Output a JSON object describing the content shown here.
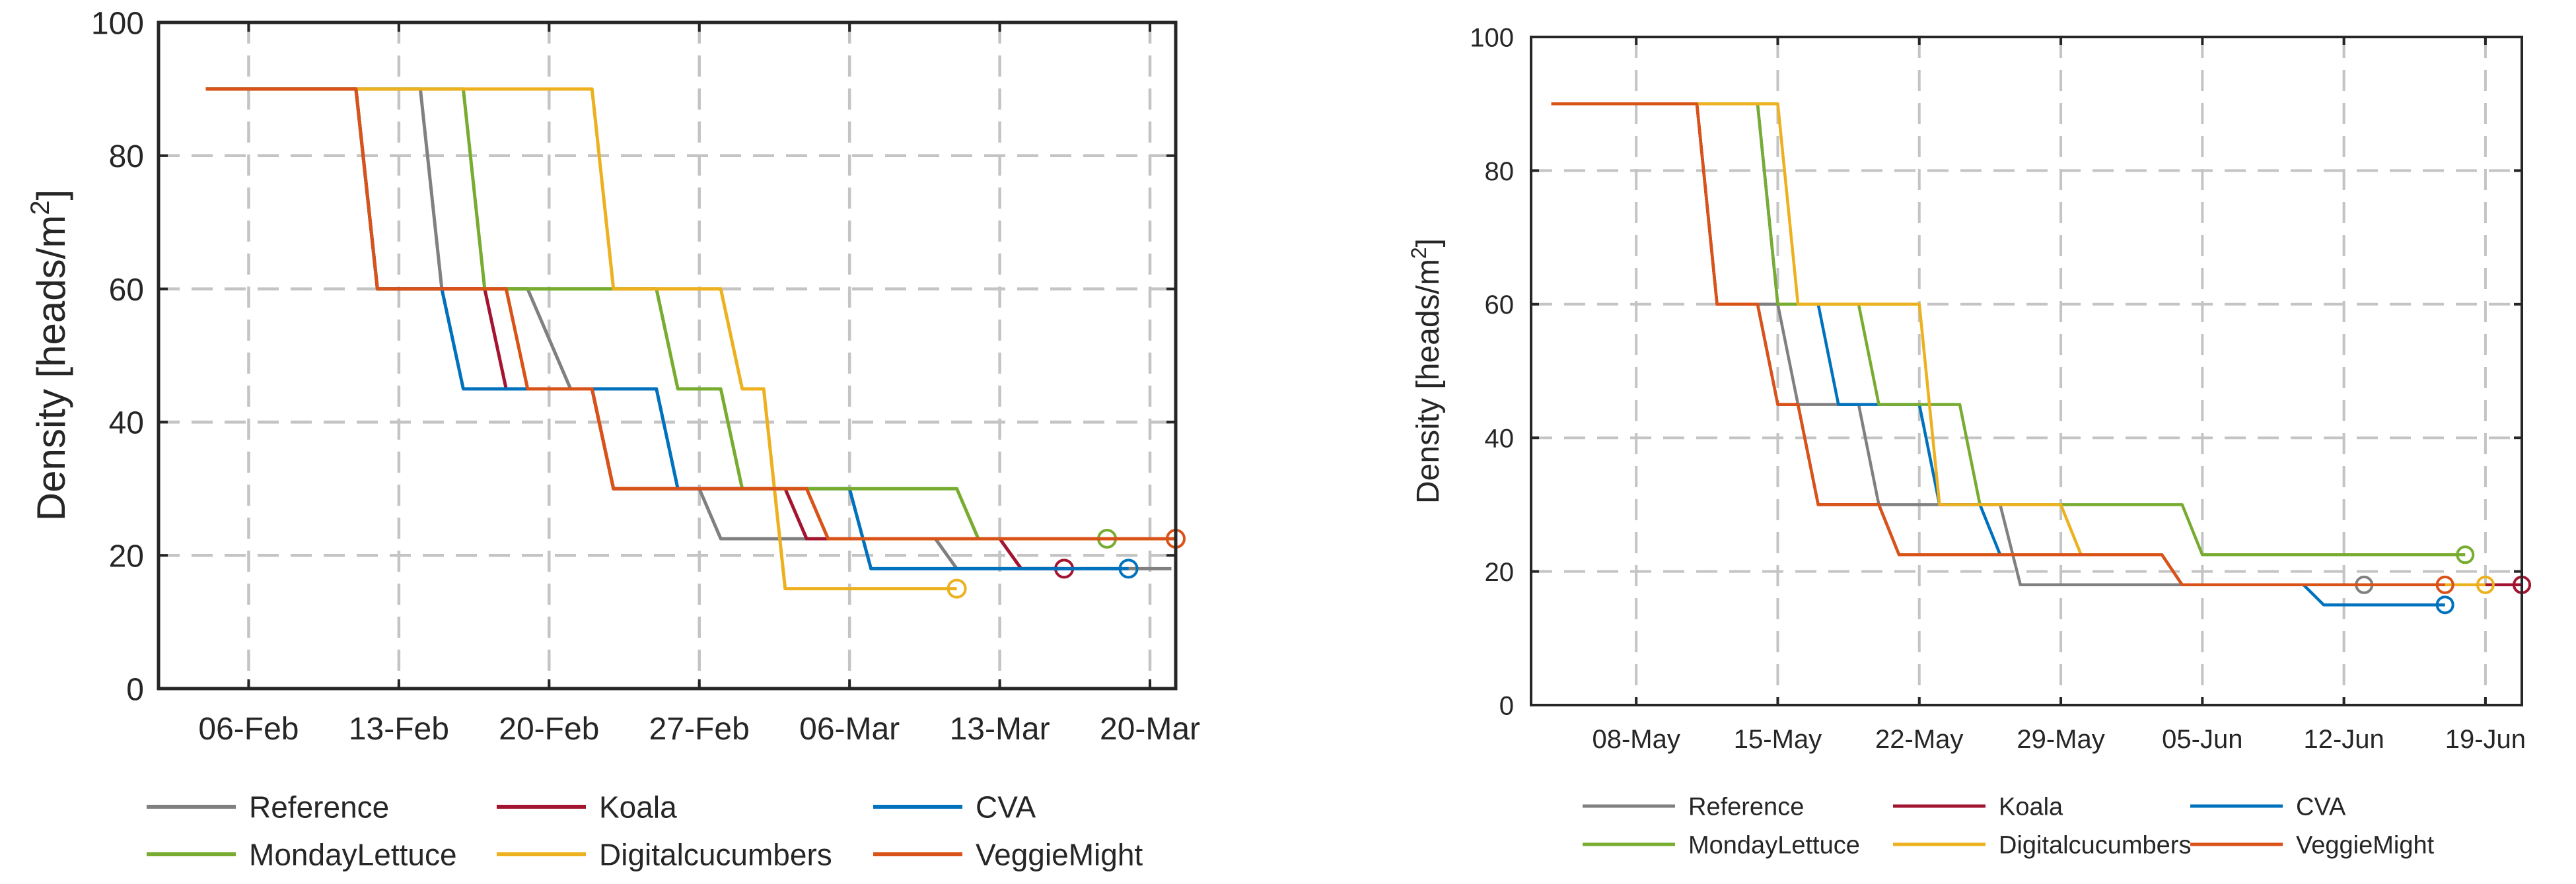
{
  "chart_data": [
    {
      "type": "line",
      "title": "",
      "ylabel": "Density [heads/m²]",
      "ylabel_main": "Density [heads/m",
      "ylabel_sup": "2",
      "ylabel_end": "]",
      "xlim": [
        -2.2,
        45.2
      ],
      "ylim": [
        0,
        100
      ],
      "x_day0": "04-Feb",
      "x_ticks": [
        2,
        9,
        16,
        23,
        30,
        37,
        44
      ],
      "x_tick_labels": [
        "06-Feb",
        "13-Feb",
        "20-Feb",
        "27-Feb",
        "06-Mar",
        "13-Mar",
        "20-Mar"
      ],
      "y_ticks": [
        0,
        20,
        40,
        60,
        80,
        100
      ],
      "y_tick_labels": [
        "0",
        "20",
        "40",
        "60",
        "80",
        "100"
      ],
      "grid": true,
      "legend_position": "below",
      "series": [
        {
          "name": "Reference",
          "color": "#808080",
          "end_marker": false,
          "points": [
            [
              0,
              90
            ],
            [
              7,
              90
            ],
            [
              10,
              90
            ],
            [
              11,
              60
            ],
            [
              15,
              60
            ],
            [
              17,
              45
            ],
            [
              18,
              45
            ],
            [
              19,
              30
            ],
            [
              23,
              30
            ],
            [
              24,
              22.5
            ],
            [
              34,
              22.5
            ],
            [
              35,
              18
            ],
            [
              45,
              18
            ]
          ]
        },
        {
          "name": "Koala",
          "color": "#a2142f",
          "end_marker": true,
          "points": [
            [
              0,
              90
            ],
            [
              7,
              90
            ],
            [
              8,
              60
            ],
            [
              13,
              60
            ],
            [
              14,
              45
            ],
            [
              18,
              45
            ],
            [
              19,
              30
            ],
            [
              27,
              30
            ],
            [
              28,
              22.5
            ],
            [
              37,
              22.5
            ],
            [
              38,
              18
            ],
            [
              40,
              18
            ]
          ]
        },
        {
          "name": "CVA",
          "color": "#0072bd",
          "end_marker": true,
          "points": [
            [
              0,
              90
            ],
            [
              7,
              90
            ],
            [
              8,
              60
            ],
            [
              11,
              60
            ],
            [
              12,
              45
            ],
            [
              21,
              45
            ],
            [
              22,
              30
            ],
            [
              30,
              30
            ],
            [
              31,
              18
            ],
            [
              43,
              18
            ]
          ]
        },
        {
          "name": "MondayLettuce",
          "color": "#77ac30",
          "end_marker": true,
          "points": [
            [
              0,
              90
            ],
            [
              12,
              90
            ],
            [
              13,
              60
            ],
            [
              21,
              60
            ],
            [
              22,
              45
            ],
            [
              24,
              45
            ],
            [
              25,
              30
            ],
            [
              35,
              30
            ],
            [
              36,
              22.5
            ],
            [
              42,
              22.5
            ]
          ]
        },
        {
          "name": "Digitalcucumbers",
          "color": "#edb120",
          "end_marker": true,
          "points": [
            [
              0,
              90
            ],
            [
              18,
              90
            ],
            [
              19,
              60
            ],
            [
              24,
              60
            ],
            [
              25,
              45
            ],
            [
              26,
              45
            ],
            [
              27,
              15
            ],
            [
              35,
              15
            ]
          ]
        },
        {
          "name": "VeggieMight",
          "color": "#d95319",
          "end_marker": true,
          "points": [
            [
              0,
              90
            ],
            [
              7,
              90
            ],
            [
              8,
              60
            ],
            [
              14,
              60
            ],
            [
              15,
              45
            ],
            [
              18,
              45
            ],
            [
              19,
              30
            ],
            [
              28,
              30
            ],
            [
              29,
              22.5
            ],
            [
              41,
              22.5
            ],
            [
              46,
              22.5
            ]
          ]
        }
      ]
    },
    {
      "type": "line",
      "title": "",
      "ylabel": "Density [heads/m²]",
      "ylabel_main": "Density [heads/m",
      "ylabel_sup": "2",
      "ylabel_end": "]",
      "xlim": [
        -5.2,
        43.8
      ],
      "ylim": [
        0,
        100
      ],
      "x_day0": "08-May",
      "x_ticks": [
        0,
        7,
        14,
        21,
        28,
        35,
        42
      ],
      "x_tick_labels": [
        "08-May",
        "15-May",
        "22-May",
        "29-May",
        "05-Jun",
        "12-Jun",
        "19-Jun"
      ],
      "y_ticks": [
        0,
        20,
        40,
        60,
        80,
        100
      ],
      "y_tick_labels": [
        "0",
        "20",
        "40",
        "60",
        "80",
        "100"
      ],
      "grid": true,
      "legend_position": "below",
      "series": [
        {
          "name": "Reference",
          "color": "#808080",
          "end_marker": true,
          "points": [
            [
              -4.2,
              90
            ],
            [
              3,
              90
            ],
            [
              4,
              60
            ],
            [
              7,
              60
            ],
            [
              8,
              45
            ],
            [
              11,
              45
            ],
            [
              12,
              30
            ],
            [
              18,
              30
            ],
            [
              19,
              18
            ],
            [
              36,
              18
            ]
          ]
        },
        {
          "name": "Koala",
          "color": "#a2142f",
          "end_marker": true,
          "points": [
            [
              -4.2,
              90
            ],
            [
              3,
              90
            ],
            [
              4,
              60
            ],
            [
              6,
              60
            ],
            [
              7,
              45
            ],
            [
              8,
              45
            ],
            [
              9,
              30
            ],
            [
              12,
              30
            ],
            [
              13,
              22.5
            ],
            [
              26,
              22.5
            ],
            [
              27,
              18
            ],
            [
              44,
              18
            ]
          ]
        },
        {
          "name": "CVA",
          "color": "#0072bd",
          "end_marker": true,
          "points": [
            [
              -4.2,
              90
            ],
            [
              6,
              90
            ],
            [
              7,
              60
            ],
            [
              9,
              60
            ],
            [
              10,
              45
            ],
            [
              14,
              45
            ],
            [
              15,
              30
            ],
            [
              17,
              30
            ],
            [
              18,
              22.5
            ],
            [
              26,
              22.5
            ],
            [
              27,
              18
            ],
            [
              33,
              18
            ],
            [
              34,
              15
            ],
            [
              40,
              15
            ]
          ]
        },
        {
          "name": "MondayLettuce",
          "color": "#77ac30",
          "end_marker": true,
          "points": [
            [
              -4.2,
              90
            ],
            [
              6,
              90
            ],
            [
              7,
              60
            ],
            [
              11,
              60
            ],
            [
              12,
              45
            ],
            [
              16,
              45
            ],
            [
              17,
              30
            ],
            [
              27,
              30
            ],
            [
              28,
              22.5
            ],
            [
              41,
              22.5
            ]
          ]
        },
        {
          "name": "Digitalcucumbers",
          "color": "#edb120",
          "end_marker": true,
          "points": [
            [
              -4.2,
              90
            ],
            [
              7,
              90
            ],
            [
              8,
              60
            ],
            [
              14,
              60
            ],
            [
              15,
              30
            ],
            [
              21,
              30
            ],
            [
              22,
              22.5
            ],
            [
              26,
              22.5
            ],
            [
              27,
              18
            ],
            [
              42,
              18
            ]
          ]
        },
        {
          "name": "VeggieMight",
          "color": "#d95319",
          "end_marker": true,
          "points": [
            [
              -4.2,
              90
            ],
            [
              3,
              90
            ],
            [
              4,
              60
            ],
            [
              6,
              60
            ],
            [
              7,
              45
            ],
            [
              8,
              45
            ],
            [
              9,
              30
            ],
            [
              12,
              30
            ],
            [
              13,
              22.5
            ],
            [
              26,
              22.5
            ],
            [
              27,
              18
            ],
            [
              40,
              18
            ]
          ]
        }
      ]
    }
  ]
}
